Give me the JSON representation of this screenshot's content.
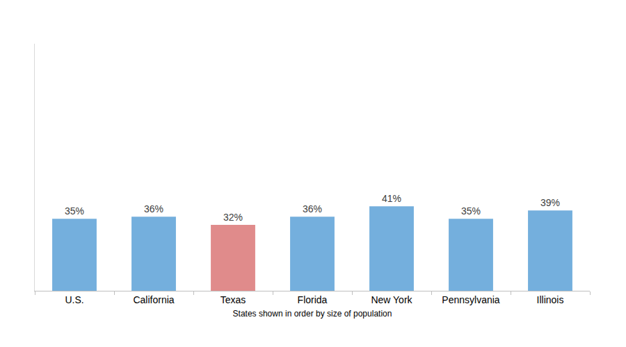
{
  "chart_data": {
    "type": "bar",
    "categories": [
      "U.S.",
      "California",
      "Texas",
      "Florida",
      "New York",
      "Pennsylvania",
      "Illinois"
    ],
    "values": [
      35,
      36,
      32,
      36,
      41,
      35,
      39
    ],
    "value_labels": [
      "35%",
      "36%",
      "32%",
      "36%",
      "41%",
      "35%",
      "39%"
    ],
    "colors": [
      "#74afdd",
      "#74afdd",
      "#e08b8b",
      "#74afdd",
      "#74afdd",
      "#74afdd",
      "#74afdd"
    ],
    "xlabel": "States shown in order by size of population",
    "ylim": [
      0,
      120
    ],
    "grid": false,
    "data_labels": true,
    "tick_labels": "x"
  }
}
